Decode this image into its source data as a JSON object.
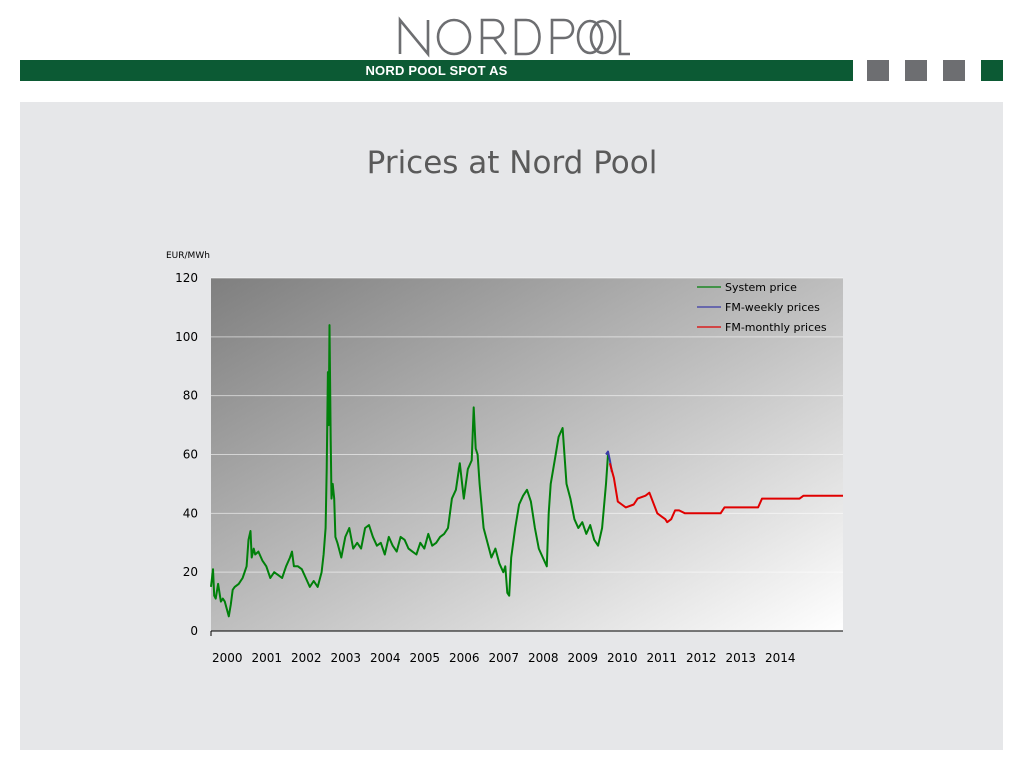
{
  "logo": {
    "text": "NORD POOL"
  },
  "header": {
    "band_label": "NORD POOL SPOT AS",
    "square_colors": [
      "#6d6e71",
      "#6d6e71",
      "#6d6e71",
      "#0c5a34"
    ]
  },
  "slide": {
    "title": "Prices at Nord Pool"
  },
  "chart_data": {
    "type": "line",
    "title": "Prices at Nord Pool",
    "ylabel": "EUR/MWh",
    "xlabel": "",
    "ylim": [
      0,
      120
    ],
    "xlim": [
      2000,
      2016
    ],
    "yticks": [
      0,
      20,
      40,
      60,
      80,
      100,
      120
    ],
    "xticks": [
      "2000",
      "2001",
      "2002",
      "2003",
      "2004",
      "2005",
      "2006",
      "2007",
      "2008",
      "2009",
      "2010",
      "2011",
      "2012",
      "2013",
      "2014"
    ],
    "grid": true,
    "legend_position": "top-right",
    "series": [
      {
        "name": "System price",
        "color": "#00800a",
        "x": [
          2000.0,
          2000.05,
          2000.08,
          2000.12,
          2000.18,
          2000.25,
          2000.3,
          2000.35,
          2000.45,
          2000.5,
          2000.55,
          2000.6,
          2000.7,
          2000.8,
          2000.9,
          2000.95,
          2001.0,
          2001.03,
          2001.08,
          2001.12,
          2001.2,
          2001.3,
          2001.4,
          2001.5,
          2001.6,
          2001.7,
          2001.8,
          2001.9,
          2002.0,
          2002.05,
          2002.1,
          2002.2,
          2002.3,
          2002.4,
          2002.5,
          2002.6,
          2002.7,
          2002.8,
          2002.85,
          2002.9,
          2002.93,
          2002.96,
          2002.98,
          2003.0,
          2003.03,
          2003.05,
          2003.08,
          2003.12,
          2003.15,
          2003.2,
          2003.3,
          2003.4,
          2003.5,
          2003.6,
          2003.7,
          2003.8,
          2003.9,
          2004.0,
          2004.1,
          2004.2,
          2004.3,
          2004.4,
          2004.5,
          2004.6,
          2004.7,
          2004.8,
          2004.9,
          2005.0,
          2005.1,
          2005.2,
          2005.3,
          2005.4,
          2005.5,
          2005.6,
          2005.7,
          2005.8,
          2005.9,
          2006.0,
          2006.1,
          2006.2,
          2006.3,
          2006.4,
          2006.5,
          2006.6,
          2006.65,
          2006.7,
          2006.75,
          2006.8,
          2006.9,
          2007.0,
          2007.1,
          2007.2,
          2007.3,
          2007.4,
          2007.45,
          2007.5,
          2007.55,
          2007.6,
          2007.7,
          2007.8,
          2007.9,
          2008.0,
          2008.1,
          2008.2,
          2008.3,
          2008.4,
          2008.5,
          2008.55,
          2008.6,
          2008.7,
          2008.8,
          2008.9,
          2009.0,
          2009.1,
          2009.2,
          2009.3,
          2009.4,
          2009.5,
          2009.6,
          2009.7,
          2009.8,
          2009.9,
          2010.0,
          2010.05
        ],
        "y": [
          15,
          21,
          12,
          11,
          16,
          10,
          11,
          10,
          5,
          9,
          14,
          15,
          16,
          18,
          22,
          31,
          34,
          25,
          28,
          26,
          27,
          24,
          22,
          18,
          20,
          19,
          18,
          22,
          25,
          27,
          22,
          22,
          21,
          18,
          15,
          17,
          15,
          20,
          26,
          35,
          55,
          88,
          70,
          104,
          65,
          45,
          50,
          45,
          32,
          30,
          25,
          32,
          35,
          28,
          30,
          28,
          35,
          36,
          32,
          29,
          30,
          26,
          32,
          29,
          27,
          32,
          31,
          28,
          27,
          26,
          30,
          28,
          33,
          29,
          30,
          32,
          33,
          35,
          45,
          48,
          57,
          45,
          55,
          58,
          76,
          62,
          60,
          50,
          35,
          30,
          25,
          28,
          23,
          20,
          22,
          13,
          12,
          25,
          35,
          43,
          46,
          48,
          44,
          35,
          28,
          25,
          22,
          40,
          50,
          58,
          66,
          69,
          50,
          45,
          38,
          35,
          37,
          33,
          36,
          31,
          29,
          35,
          50,
          60
        ]
      },
      {
        "name": "FM-weekly prices",
        "color": "#3a3aa8",
        "x": [
          2010.0,
          2010.05,
          2010.1,
          2010.15
        ],
        "y": [
          60,
          61,
          58,
          54
        ]
      },
      {
        "name": "FM-monthly prices",
        "color": "#e00000",
        "x": [
          2010.1,
          2010.2,
          2010.3,
          2010.4,
          2010.5,
          2010.7,
          2010.8,
          2011.0,
          2011.1,
          2011.3,
          2011.4,
          2011.5,
          2011.55,
          2011.65,
          2011.75,
          2011.85,
          2012.0,
          2012.9,
          2013.0,
          2013.85,
          2013.95,
          2014.9,
          2015.0,
          2016.0
        ],
        "y": [
          57,
          52,
          44,
          43,
          42,
          43,
          45,
          46,
          47,
          40,
          39,
          38,
          37,
          38,
          41,
          41,
          40,
          40,
          42,
          42,
          45,
          45,
          46,
          46
        ]
      }
    ]
  }
}
